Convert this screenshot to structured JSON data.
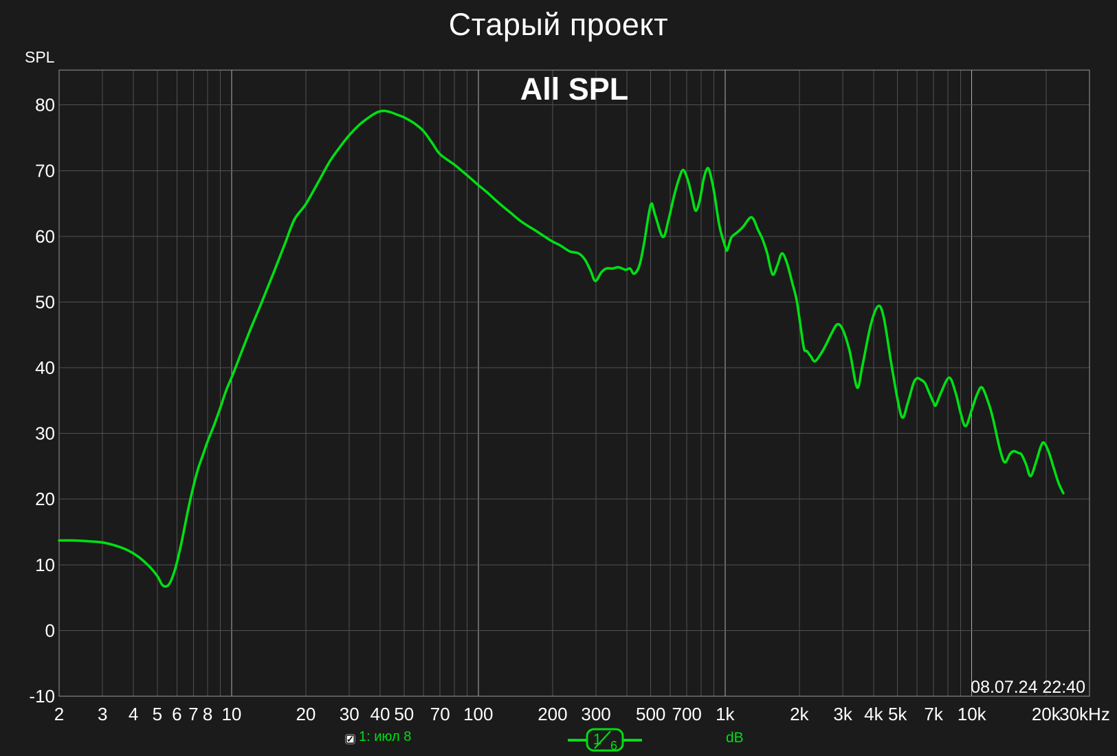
{
  "page": {
    "title": "Старый проект",
    "graph_title": "All SPL",
    "y_axis_name": "SPL",
    "timestamp": "08.07.24 22:40"
  },
  "legend": {
    "trace_label": "1: июл 8",
    "checkbox_checked": true,
    "checkbox_glyph": "✓",
    "smoothing_numerator": "1",
    "smoothing_denominator": "6",
    "unit_label": "dB"
  },
  "colors": {
    "background": "#1b1b1b",
    "grid_minor": "#525252",
    "grid_major": "#b2b2b2",
    "border": "#989898",
    "text": "#ffffff",
    "trace": "#00df14"
  },
  "chart_data": {
    "type": "line",
    "title": "All SPL",
    "x_scale": "log",
    "x_unit": "Hz",
    "xlabel": "",
    "ylabel": "SPL",
    "x_range": [
      2,
      30000
    ],
    "y_range": [
      -10,
      85.3
    ],
    "grid": true,
    "y_tick_labels": [
      80,
      70,
      60,
      50,
      40,
      30,
      20,
      10,
      0,
      -10
    ],
    "x_tick_labels": [
      {
        "f": 2,
        "label": "2"
      },
      {
        "f": 3,
        "label": "3"
      },
      {
        "f": 4,
        "label": "4"
      },
      {
        "f": 5,
        "label": "5"
      },
      {
        "f": 6,
        "label": "6"
      },
      {
        "f": 7,
        "label": "7"
      },
      {
        "f": 8,
        "label": "8"
      },
      {
        "f": 10,
        "label": "10"
      },
      {
        "f": 20,
        "label": "20"
      },
      {
        "f": 30,
        "label": "30"
      },
      {
        "f": 40,
        "label": "40"
      },
      {
        "f": 50,
        "label": "50"
      },
      {
        "f": 70,
        "label": "70"
      },
      {
        "f": 100,
        "label": "100"
      },
      {
        "f": 200,
        "label": "200"
      },
      {
        "f": 300,
        "label": "300"
      },
      {
        "f": 500,
        "label": "500"
      },
      {
        "f": 700,
        "label": "700"
      },
      {
        "f": 1000,
        "label": "1k"
      },
      {
        "f": 2000,
        "label": "2k"
      },
      {
        "f": 3000,
        "label": "3k"
      },
      {
        "f": 4000,
        "label": "4k"
      },
      {
        "f": 5000,
        "label": "5k"
      },
      {
        "f": 7000,
        "label": "7k"
      },
      {
        "f": 10000,
        "label": "10k"
      },
      {
        "f": 20000,
        "label": "20k"
      },
      {
        "f": 30000,
        "label": "30kHz"
      }
    ],
    "series": [
      {
        "name": "1: июл 8",
        "color": "#00df14",
        "smoothing": "1/6",
        "points": [
          [
            2.0,
            13.7
          ],
          [
            2.3,
            13.7
          ],
          [
            2.6,
            13.6
          ],
          [
            3.0,
            13.4
          ],
          [
            3.4,
            12.9
          ],
          [
            3.8,
            12.2
          ],
          [
            4.2,
            11.2
          ],
          [
            4.6,
            9.9
          ],
          [
            5.0,
            8.3
          ],
          [
            5.25,
            6.9
          ],
          [
            5.5,
            6.8
          ],
          [
            5.7,
            7.7
          ],
          [
            5.95,
            9.8
          ],
          [
            6.2,
            12.6
          ],
          [
            6.45,
            15.7
          ],
          [
            6.7,
            18.8
          ],
          [
            7.0,
            21.9
          ],
          [
            7.3,
            24.5
          ],
          [
            7.6,
            26.4
          ],
          [
            8.0,
            28.8
          ],
          [
            8.5,
            31.3
          ],
          [
            9.0,
            33.9
          ],
          [
            9.5,
            36.5
          ],
          [
            10.1,
            38.9
          ],
          [
            11.0,
            42.5
          ],
          [
            12.0,
            46.1
          ],
          [
            13.0,
            49.2
          ],
          [
            14.0,
            52.2
          ],
          [
            15.0,
            55.0
          ],
          [
            16.5,
            59.0
          ],
          [
            18.0,
            62.6
          ],
          [
            20.0,
            64.9
          ],
          [
            22.5,
            68.3
          ],
          [
            25.0,
            71.4
          ],
          [
            27.5,
            73.6
          ],
          [
            30.0,
            75.4
          ],
          [
            33.0,
            77.0
          ],
          [
            36.0,
            78.1
          ],
          [
            39.0,
            78.9
          ],
          [
            41.5,
            79.1
          ],
          [
            44.0,
            78.9
          ],
          [
            47.0,
            78.5
          ],
          [
            50.0,
            78.1
          ],
          [
            55.0,
            77.2
          ],
          [
            60.0,
            76.0
          ],
          [
            65.0,
            74.2
          ],
          [
            70.0,
            72.5
          ],
          [
            80.0,
            70.9
          ],
          [
            90.0,
            69.3
          ],
          [
            100,
            67.8
          ],
          [
            110,
            66.5
          ],
          [
            120,
            65.2
          ],
          [
            135,
            63.6
          ],
          [
            150,
            62.2
          ],
          [
            170,
            60.9
          ],
          [
            185,
            60.0
          ],
          [
            200,
            59.2
          ],
          [
            215,
            58.6
          ],
          [
            235,
            57.7
          ],
          [
            255,
            57.4
          ],
          [
            270,
            56.5
          ],
          [
            285,
            54.8
          ],
          [
            298,
            53.2
          ],
          [
            315,
            54.5
          ],
          [
            330,
            55.1
          ],
          [
            350,
            55.1
          ],
          [
            370,
            55.3
          ],
          [
            395,
            54.9
          ],
          [
            412,
            55.1
          ],
          [
            428,
            54.3
          ],
          [
            450,
            55.6
          ],
          [
            470,
            59.0
          ],
          [
            500,
            64.8
          ],
          [
            520,
            63.3
          ],
          [
            560,
            59.9
          ],
          [
            590,
            62.5
          ],
          [
            620,
            66.0
          ],
          [
            650,
            68.7
          ],
          [
            677,
            70.1
          ],
          [
            710,
            68.3
          ],
          [
            735,
            66.0
          ],
          [
            760,
            63.9
          ],
          [
            790,
            65.5
          ],
          [
            820,
            68.8
          ],
          [
            852,
            70.4
          ],
          [
            880,
            68.8
          ],
          [
            906,
            66.4
          ],
          [
            950,
            61.5
          ],
          [
            1000,
            58.5
          ],
          [
            1021,
            57.9
          ],
          [
            1060,
            59.8
          ],
          [
            1120,
            60.6
          ],
          [
            1180,
            61.4
          ],
          [
            1280,
            62.9
          ],
          [
            1360,
            61.0
          ],
          [
            1420,
            59.5
          ],
          [
            1480,
            57.5
          ],
          [
            1557,
            54.2
          ],
          [
            1630,
            55.6
          ],
          [
            1700,
            57.4
          ],
          [
            1780,
            56.0
          ],
          [
            1870,
            53.0
          ],
          [
            1950,
            50.3
          ],
          [
            2020,
            46.5
          ],
          [
            2090,
            42.9
          ],
          [
            2150,
            42.5
          ],
          [
            2230,
            41.7
          ],
          [
            2320,
            41.0
          ],
          [
            2500,
            42.7
          ],
          [
            2700,
            45.2
          ],
          [
            2850,
            46.6
          ],
          [
            3000,
            45.8
          ],
          [
            3200,
            42.5
          ],
          [
            3430,
            37.0
          ],
          [
            3600,
            40.2
          ],
          [
            3900,
            46.6
          ],
          [
            4180,
            49.4
          ],
          [
            4400,
            47.6
          ],
          [
            4700,
            41.0
          ],
          [
            5000,
            35.2
          ],
          [
            5240,
            32.4
          ],
          [
            5500,
            34.6
          ],
          [
            5800,
            37.6
          ],
          [
            6000,
            38.4
          ],
          [
            6200,
            38.2
          ],
          [
            6450,
            37.7
          ],
          [
            6700,
            36.3
          ],
          [
            7000,
            34.7
          ],
          [
            7150,
            34.3
          ],
          [
            7500,
            36.2
          ],
          [
            8100,
            38.5
          ],
          [
            8600,
            36.2
          ],
          [
            9000,
            33.2
          ],
          [
            9440,
            31.1
          ],
          [
            10000,
            33.6
          ],
          [
            10500,
            35.9
          ],
          [
            11000,
            37.0
          ],
          [
            11700,
            34.6
          ],
          [
            12200,
            32.2
          ],
          [
            13000,
            27.6
          ],
          [
            13600,
            25.6
          ],
          [
            14300,
            26.9
          ],
          [
            14800,
            27.3
          ],
          [
            15500,
            27.0
          ],
          [
            15900,
            26.8
          ],
          [
            16600,
            25.3
          ],
          [
            17300,
            23.5
          ],
          [
            18200,
            25.6
          ],
          [
            19000,
            27.9
          ],
          [
            19600,
            28.6
          ],
          [
            20500,
            27.2
          ],
          [
            21500,
            24.7
          ],
          [
            22500,
            22.4
          ],
          [
            23500,
            20.9
          ]
        ]
      }
    ]
  }
}
